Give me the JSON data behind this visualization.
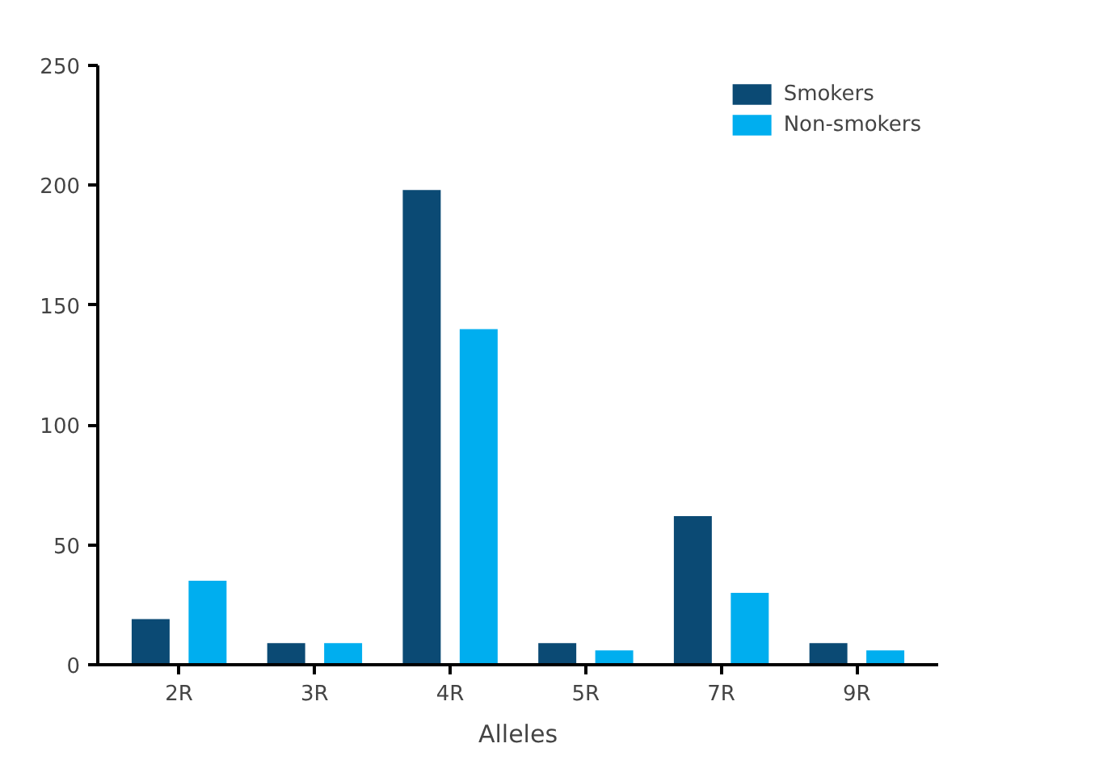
{
  "chart_data": {
    "type": "bar",
    "xlabel": "Alleles",
    "categories": [
      "2R",
      "3R",
      "4R",
      "5R",
      "7R",
      "9R"
    ],
    "series": [
      {
        "name": "Smokers",
        "color": "#0b4a74",
        "values": [
          19,
          9,
          198,
          9,
          62,
          9
        ]
      },
      {
        "name": "Non-smokers",
        "color": "#00aeef",
        "values": [
          35,
          9,
          140,
          6,
          30,
          6
        ]
      }
    ],
    "ylim": [
      0,
      250
    ],
    "yticks": [
      0,
      50,
      100,
      150,
      200,
      250
    ],
    "grid": false,
    "legend": "top right"
  }
}
